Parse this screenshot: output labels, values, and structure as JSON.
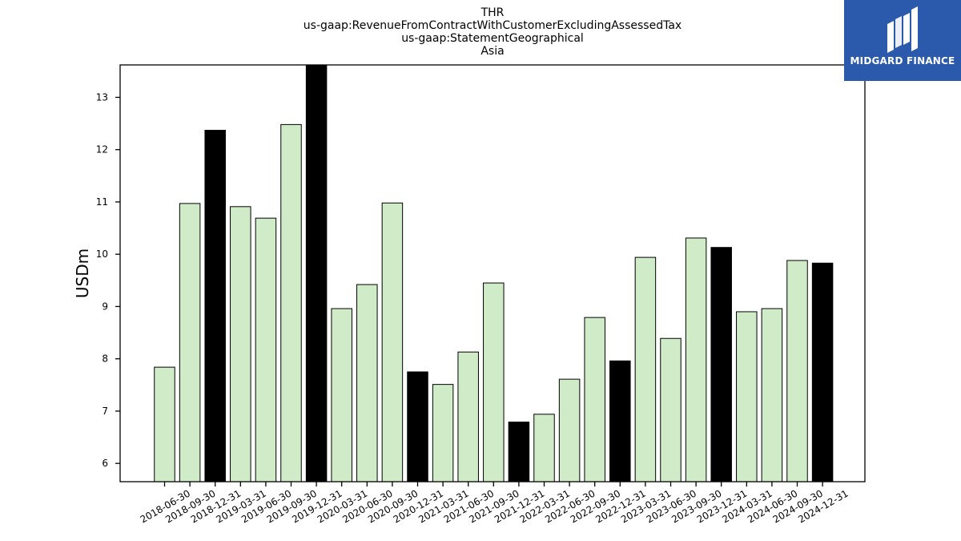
{
  "brand": {
    "name": "MIDGARD FINANCE",
    "bg_color": "#2b5aac"
  },
  "chart_data": {
    "type": "bar",
    "title_lines": [
      "THR",
      "us-gaap:RevenueFromContractWithCustomerExcludingAssessedTax",
      "us-gaap:StatementGeographical",
      "Asia"
    ],
    "ylabel": "USDm",
    "xlabel": "",
    "ylim": [
      5.65,
      13.62
    ],
    "yticks": [
      6,
      7,
      8,
      9,
      10,
      11,
      12,
      13
    ],
    "grid": false,
    "categories": [
      "2018-06-30",
      "2018-09-30",
      "2018-12-31",
      "2019-03-31",
      "2019-06-30",
      "2019-09-30",
      "2019-12-31",
      "2020-03-31",
      "2020-06-30",
      "2020-09-30",
      "2020-12-31",
      "2021-03-31",
      "2021-06-30",
      "2021-09-30",
      "2021-12-31",
      "2022-03-31",
      "2022-06-30",
      "2022-09-30",
      "2022-12-31",
      "2023-03-31",
      "2023-06-30",
      "2023-09-30",
      "2023-12-31",
      "2024-03-31",
      "2024-06-30",
      "2024-09-30",
      "2024-12-31"
    ],
    "values": [
      7.84,
      10.97,
      12.37,
      10.91,
      10.69,
      12.48,
      13.62,
      8.96,
      9.42,
      10.98,
      7.75,
      7.51,
      8.13,
      9.45,
      6.79,
      6.94,
      7.61,
      8.79,
      7.96,
      9.94,
      8.39,
      10.31,
      10.13,
      8.9,
      8.96,
      9.88,
      9.83
    ],
    "colors": {
      "quarter": "#d0ebc8",
      "year_end": "#000000",
      "edge": "#000000"
    }
  }
}
